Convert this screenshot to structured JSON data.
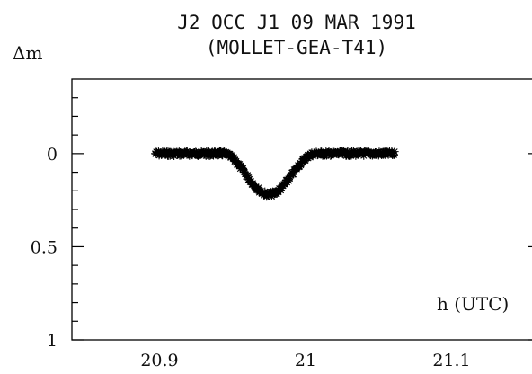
{
  "chart_data": {
    "type": "scatter",
    "title": "J2 OCC J1 09 MAR 1991",
    "subtitle": "(MOLLET-GEA-T41)",
    "xlabel": "h (UTC)",
    "ylabel": "Δm",
    "xlim": [
      20.84,
      21.16
    ],
    "ylim": [
      1.0,
      -0.4
    ],
    "y_inverted": true,
    "x_ticks": [
      20.9,
      21,
      21.1
    ],
    "x_tick_labels": [
      "20.9",
      "21",
      "21.1"
    ],
    "y_ticks": [
      0,
      0.5,
      1
    ],
    "y_tick_labels": [
      "0",
      "0.5",
      "1"
    ],
    "marker": "star",
    "grid": false,
    "curve": {
      "x_start": 20.897,
      "x_end": 21.061,
      "baseline": 0.0,
      "dip_center": 20.975,
      "dip_depth": 0.22,
      "dip_half_width": 0.032,
      "noise": 0.013,
      "n_points": 420
    }
  }
}
